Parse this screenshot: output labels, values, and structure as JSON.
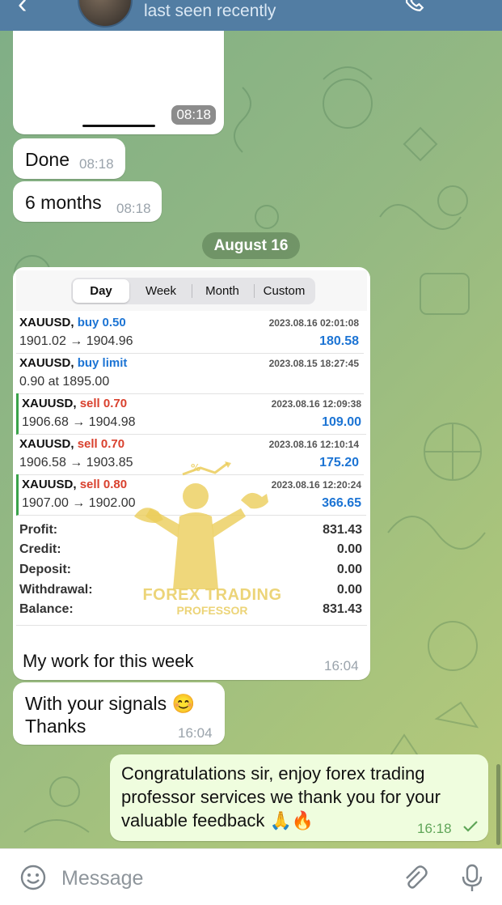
{
  "header": {
    "status": "last seen recently",
    "icons": [
      "back-arrow-icon",
      "avatar",
      "phone-icon",
      "more-icon"
    ]
  },
  "messages": {
    "photo_time": "08:18",
    "m1": {
      "text": "Done",
      "time": "08:18"
    },
    "m2": {
      "text": "6 months",
      "time": "08:18"
    },
    "date_separator": "August 16",
    "card": {
      "tabs": [
        "Day",
        "Week",
        "Month",
        "Custom"
      ],
      "active_tab": "Day",
      "trades": [
        {
          "symbol": "XAUUSD,",
          "kind": "buy 0.50",
          "side": "buy",
          "date": "2023.08.16 02:01:08",
          "prices": "1901.02 → 1904.96",
          "profit": "180.58",
          "marked": false
        },
        {
          "symbol": "XAUUSD,",
          "kind": "buy limit",
          "side": "buy",
          "date": "2023.08.15 18:27:45",
          "prices": "0.90 at 1895.00",
          "profit": "",
          "marked": false
        },
        {
          "symbol": "XAUUSD,",
          "kind": "sell 0.70",
          "side": "sell",
          "date": "2023.08.16 12:09:38",
          "prices": "1906.68 → 1904.98",
          "profit": "109.00",
          "marked": true
        },
        {
          "symbol": "XAUUSD,",
          "kind": "sell 0.70",
          "side": "sell",
          "date": "2023.08.16 12:10:14",
          "prices": "1906.58 → 1903.85",
          "profit": "175.20",
          "marked": false
        },
        {
          "symbol": "XAUUSD,",
          "kind": "sell 0.80",
          "side": "sell",
          "date": "2023.08.16 12:20:24",
          "prices": "1907.00 → 1902.00",
          "profit": "366.65",
          "marked": true
        }
      ],
      "summary": [
        {
          "label": "Profit:",
          "value": "831.43"
        },
        {
          "label": "Credit:",
          "value": "0.00"
        },
        {
          "label": "Deposit:",
          "value": "0.00"
        },
        {
          "label": "Withdrawal:",
          "value": "0.00"
        },
        {
          "label": "Balance:",
          "value": "831.43"
        }
      ],
      "watermark": {
        "title": "FOREX TRADING",
        "subtitle": "PROFESSOR"
      },
      "caption": "My work for this week",
      "time": "16:04"
    },
    "m3": {
      "line1": "With your signals 😊",
      "line2": "Thanks",
      "time": "16:04"
    },
    "m4": {
      "line1": "Congratulations sir, enjoy forex trading",
      "line2": "professor services we thank you for your",
      "line3": "valuable feedback 🙏🔥",
      "time": "16:18",
      "status_icon": "check-icon"
    }
  },
  "input": {
    "placeholder": "Message",
    "icons": [
      "emoji-icon",
      "attach-icon",
      "mic-icon"
    ]
  },
  "colors": {
    "header": "#527da3",
    "outgoing": "#effdde",
    "buy": "#1c74d4",
    "sell": "#d9412e",
    "profit": "#1c74d4",
    "check": "#5fa558"
  }
}
